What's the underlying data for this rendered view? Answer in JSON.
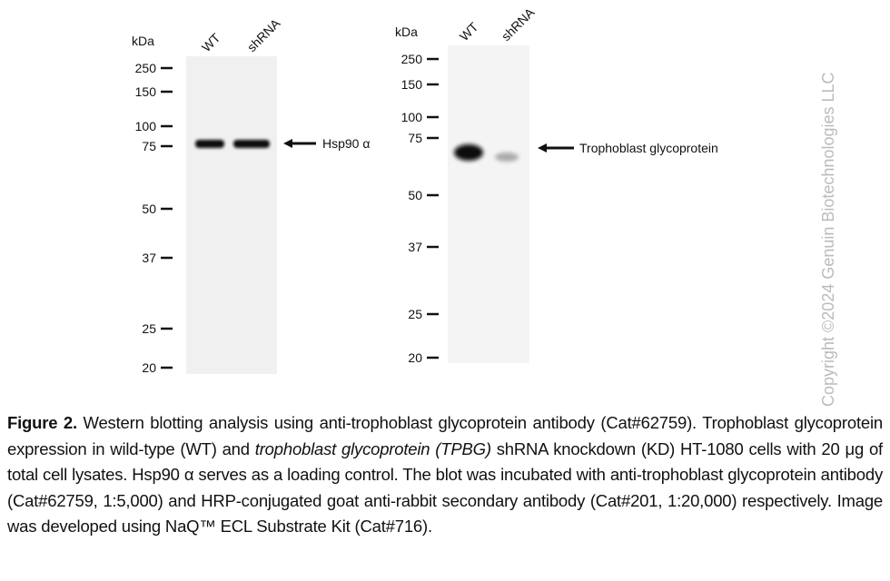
{
  "figure": {
    "blots": [
      {
        "unit_label": "kDa",
        "lanes": [
          "WT",
          "shRNA"
        ],
        "markers": [
          "250",
          "150",
          "100",
          "75",
          "50",
          "37",
          "25",
          "20"
        ],
        "target": "Hsp90 α"
      },
      {
        "unit_label": "kDa",
        "lanes": [
          "WT",
          "shRNA"
        ],
        "markers": [
          "250",
          "150",
          "100",
          "75",
          "50",
          "37",
          "25",
          "20"
        ],
        "target": "Trophoblast glycoprotein"
      }
    ],
    "copyright": "Copyright ©2024 Genuin Biotechnologies LLC",
    "caption": {
      "label": "Figure 2.",
      "text_1": " Western blotting analysis using anti-trophoblast glycoprotein antibody (Cat#62759). Trophoblast glycoprotein expression in wild-type (WT) and ",
      "gene": "trophoblast glycoprotein (TPBG)",
      "text_2": " shRNA knockdown (KD) HT-1080 cells with 20 μg of total cell lysates. Hsp90 α serves as a loading control. The blot was incubated with anti-trophoblast glycoprotein antibody (Cat#62759, 1:5,000) and HRP-conjugated goat anti-rabbit secondary antibody (Cat#201, 1:20,000) respectively. Image was developed using NaQ™ ECL Substrate Kit (Cat#716)."
    }
  }
}
